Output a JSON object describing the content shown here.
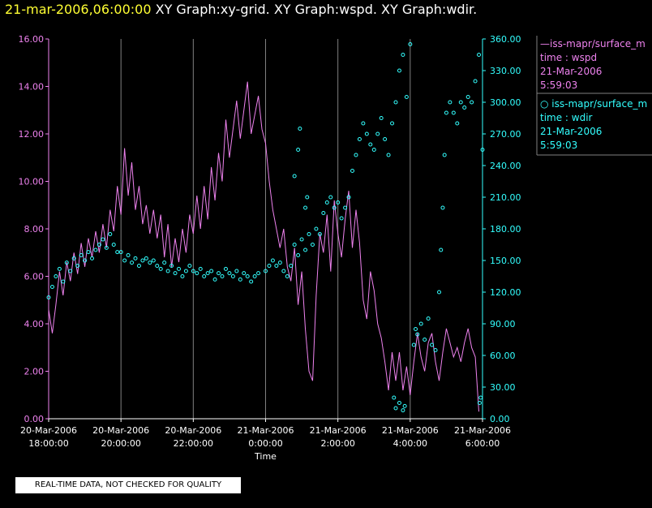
{
  "header": {
    "date": "21-mar-2006,06:00:00",
    "titles": "XY Graph:xy-grid.  XY Graph:wspd.  XY Graph:wdir."
  },
  "colors": {
    "wspd": "#ee82ee",
    "wdir": "#33ffff",
    "grid": "#808080",
    "axis_text": "#ffffff",
    "header_date": "#ffff33"
  },
  "legend": {
    "wspd": {
      "series": "iss-mapr/surface_m",
      "variable": "time : wspd",
      "date": "21-Mar-2006",
      "time": "5:59:03"
    },
    "wdir": {
      "series": "iss-mapr/surface_m",
      "variable": "time : wdir",
      "date": "21-Mar-2006",
      "time": "5:59:03"
    }
  },
  "disclaimer": "REAL-TIME DATA, NOT CHECKED FOR QUALITY",
  "chart_data": {
    "type": "line",
    "xlabel": "Time",
    "x_ticks": [
      {
        "hour": 18,
        "date": "20-Mar-2006",
        "time": "18:00:00"
      },
      {
        "hour": 20,
        "date": "20-Mar-2006",
        "time": "20:00:00"
      },
      {
        "hour": 22,
        "date": "20-Mar-2006",
        "time": "22:00:00"
      },
      {
        "hour": 24,
        "date": "21-Mar-2006",
        "time": "0:00:00"
      },
      {
        "hour": 26,
        "date": "21-Mar-2006",
        "time": "2:00:00"
      },
      {
        "hour": 28,
        "date": "21-Mar-2006",
        "time": "4:00:00"
      },
      {
        "hour": 30,
        "date": "21-Mar-2006",
        "time": "6:00:00"
      }
    ],
    "x_unit_note": "hours since 20-Mar-2006 00:00",
    "xlim": [
      18,
      30
    ],
    "y_left": {
      "ylim": [
        0,
        16
      ],
      "ticks": [
        "0.00",
        "2.00",
        "4.00",
        "6.00",
        "8.00",
        "10.00",
        "12.00",
        "14.00",
        "16.00"
      ]
    },
    "y_right": {
      "ylim": [
        0,
        360
      ],
      "ticks": [
        "0.00",
        "30.00",
        "60.00",
        "90.00",
        "120.00",
        "150.00",
        "180.00",
        "210.00",
        "240.00",
        "270.00",
        "300.00",
        "330.00",
        "360.00"
      ]
    },
    "grid": "vertical",
    "series": [
      {
        "name": "iss-mapr/surface_m  time : wspd",
        "style": "line",
        "axis": "left",
        "points": [
          [
            18.0,
            4.6
          ],
          [
            18.1,
            3.6
          ],
          [
            18.2,
            4.8
          ],
          [
            18.3,
            6.2
          ],
          [
            18.4,
            5.2
          ],
          [
            18.5,
            6.6
          ],
          [
            18.6,
            5.8
          ],
          [
            18.7,
            7.0
          ],
          [
            18.8,
            6.1
          ],
          [
            18.9,
            7.4
          ],
          [
            19.0,
            6.4
          ],
          [
            19.1,
            7.6
          ],
          [
            19.2,
            6.8
          ],
          [
            19.3,
            7.9
          ],
          [
            19.4,
            7.0
          ],
          [
            19.5,
            8.2
          ],
          [
            19.6,
            7.2
          ],
          [
            19.7,
            8.8
          ],
          [
            19.8,
            7.9
          ],
          [
            19.9,
            9.8
          ],
          [
            20.0,
            8.6
          ],
          [
            20.1,
            11.4
          ],
          [
            20.2,
            9.4
          ],
          [
            20.3,
            10.8
          ],
          [
            20.4,
            8.8
          ],
          [
            20.5,
            9.8
          ],
          [
            20.6,
            8.2
          ],
          [
            20.7,
            9.0
          ],
          [
            20.8,
            7.8
          ],
          [
            20.9,
            8.8
          ],
          [
            21.0,
            7.6
          ],
          [
            21.1,
            8.6
          ],
          [
            21.2,
            6.8
          ],
          [
            21.3,
            8.2
          ],
          [
            21.4,
            6.4
          ],
          [
            21.5,
            7.6
          ],
          [
            21.6,
            6.6
          ],
          [
            21.7,
            8.0
          ],
          [
            21.8,
            7.0
          ],
          [
            21.9,
            8.6
          ],
          [
            22.0,
            7.8
          ],
          [
            22.1,
            9.4
          ],
          [
            22.2,
            8.0
          ],
          [
            22.3,
            9.8
          ],
          [
            22.4,
            8.4
          ],
          [
            22.5,
            10.6
          ],
          [
            22.6,
            9.2
          ],
          [
            22.7,
            11.2
          ],
          [
            22.8,
            10.0
          ],
          [
            22.9,
            12.6
          ],
          [
            23.0,
            11.0
          ],
          [
            23.2,
            13.4
          ],
          [
            23.3,
            11.8
          ],
          [
            23.5,
            14.2
          ],
          [
            23.6,
            12.0
          ],
          [
            23.8,
            13.6
          ],
          [
            23.9,
            12.2
          ],
          [
            24.0,
            11.6
          ],
          [
            24.1,
            10.0
          ],
          [
            24.2,
            8.8
          ],
          [
            24.4,
            7.2
          ],
          [
            24.5,
            8.0
          ],
          [
            24.6,
            6.4
          ],
          [
            24.7,
            5.8
          ],
          [
            24.8,
            7.2
          ],
          [
            24.9,
            4.8
          ],
          [
            25.0,
            6.2
          ],
          [
            25.1,
            3.8
          ],
          [
            25.2,
            2.0
          ],
          [
            25.3,
            1.6
          ],
          [
            25.4,
            5.2
          ],
          [
            25.5,
            7.8
          ],
          [
            25.6,
            7.0
          ],
          [
            25.7,
            8.6
          ],
          [
            25.8,
            6.2
          ],
          [
            25.9,
            9.2
          ],
          [
            26.0,
            7.8
          ],
          [
            26.1,
            6.8
          ],
          [
            26.2,
            8.4
          ],
          [
            26.3,
            9.6
          ],
          [
            26.4,
            7.2
          ],
          [
            26.5,
            8.8
          ],
          [
            26.6,
            7.4
          ],
          [
            26.7,
            5.0
          ],
          [
            26.8,
            4.2
          ],
          [
            26.9,
            6.2
          ],
          [
            27.0,
            5.4
          ],
          [
            27.1,
            4.0
          ],
          [
            27.2,
            3.4
          ],
          [
            27.3,
            2.4
          ],
          [
            27.4,
            1.2
          ],
          [
            27.5,
            2.8
          ],
          [
            27.6,
            1.6
          ],
          [
            27.7,
            2.8
          ],
          [
            27.8,
            1.2
          ],
          [
            27.9,
            2.2
          ],
          [
            28.0,
            1.0
          ],
          [
            28.1,
            2.4
          ],
          [
            28.2,
            3.6
          ],
          [
            28.3,
            2.6
          ],
          [
            28.4,
            2.0
          ],
          [
            28.5,
            3.2
          ],
          [
            28.6,
            3.6
          ],
          [
            28.7,
            2.4
          ],
          [
            28.8,
            1.6
          ],
          [
            28.9,
            2.8
          ],
          [
            29.0,
            3.8
          ],
          [
            29.1,
            3.2
          ],
          [
            29.2,
            2.6
          ],
          [
            29.3,
            3.0
          ],
          [
            29.4,
            2.4
          ],
          [
            29.5,
            3.2
          ],
          [
            29.6,
            3.8
          ],
          [
            29.7,
            3.0
          ],
          [
            29.8,
            2.6
          ],
          [
            29.9,
            0.3
          ]
        ]
      },
      {
        "name": "iss-mapr/surface_m  time : wdir",
        "style": "scatter",
        "axis": "right",
        "points": [
          [
            18.0,
            115
          ],
          [
            18.1,
            125
          ],
          [
            18.2,
            135
          ],
          [
            18.3,
            142
          ],
          [
            18.4,
            130
          ],
          [
            18.5,
            148
          ],
          [
            18.6,
            140
          ],
          [
            18.7,
            152
          ],
          [
            18.8,
            145
          ],
          [
            18.9,
            155
          ],
          [
            19.0,
            150
          ],
          [
            19.1,
            158
          ],
          [
            19.2,
            152
          ],
          [
            19.3,
            160
          ],
          [
            19.4,
            165
          ],
          [
            19.5,
            170
          ],
          [
            19.6,
            162
          ],
          [
            19.7,
            175
          ],
          [
            19.8,
            165
          ],
          [
            19.9,
            158
          ],
          [
            20.0,
            158
          ],
          [
            20.1,
            150
          ],
          [
            20.2,
            155
          ],
          [
            20.3,
            148
          ],
          [
            20.4,
            152
          ],
          [
            20.5,
            145
          ],
          [
            20.6,
            150
          ],
          [
            20.7,
            152
          ],
          [
            20.8,
            148
          ],
          [
            20.9,
            150
          ],
          [
            21.0,
            145
          ],
          [
            21.1,
            142
          ],
          [
            21.2,
            148
          ],
          [
            21.3,
            140
          ],
          [
            21.4,
            145
          ],
          [
            21.5,
            138
          ],
          [
            21.6,
            142
          ],
          [
            21.7,
            135
          ],
          [
            21.8,
            140
          ],
          [
            21.9,
            145
          ],
          [
            22.0,
            140
          ],
          [
            22.1,
            138
          ],
          [
            22.2,
            142
          ],
          [
            22.3,
            135
          ],
          [
            22.4,
            138
          ],
          [
            22.5,
            140
          ],
          [
            22.6,
            132
          ],
          [
            22.7,
            138
          ],
          [
            22.8,
            135
          ],
          [
            22.9,
            142
          ],
          [
            23.0,
            138
          ],
          [
            23.1,
            135
          ],
          [
            23.2,
            140
          ],
          [
            23.3,
            132
          ],
          [
            23.4,
            138
          ],
          [
            23.5,
            135
          ],
          [
            23.6,
            130
          ],
          [
            23.7,
            135
          ],
          [
            23.8,
            138
          ],
          [
            24.0,
            140
          ],
          [
            24.1,
            145
          ],
          [
            24.2,
            150
          ],
          [
            24.3,
            145
          ],
          [
            24.4,
            148
          ],
          [
            24.5,
            140
          ],
          [
            24.6,
            135
          ],
          [
            24.7,
            145
          ],
          [
            24.8,
            165
          ],
          [
            24.9,
            155
          ],
          [
            25.0,
            170
          ],
          [
            25.1,
            160
          ],
          [
            25.2,
            175
          ],
          [
            25.3,
            165
          ],
          [
            25.4,
            180
          ],
          [
            25.5,
            175
          ],
          [
            25.6,
            195
          ],
          [
            25.7,
            205
          ],
          [
            25.8,
            210
          ],
          [
            25.9,
            200
          ],
          [
            26.0,
            205
          ],
          [
            26.1,
            190
          ],
          [
            26.2,
            200
          ],
          [
            26.3,
            210
          ],
          [
            26.4,
            235
          ],
          [
            26.5,
            250
          ],
          [
            26.6,
            265
          ],
          [
            26.7,
            280
          ],
          [
            26.8,
            270
          ],
          [
            26.9,
            260
          ],
          [
            27.0,
            255
          ],
          [
            27.1,
            270
          ],
          [
            27.2,
            285
          ],
          [
            27.3,
            265
          ],
          [
            27.4,
            250
          ],
          [
            27.5,
            280
          ],
          [
            27.6,
            300
          ],
          [
            27.7,
            330
          ],
          [
            27.8,
            345
          ],
          [
            27.9,
            305
          ],
          [
            28.0,
            355
          ],
          [
            28.1,
            70
          ],
          [
            28.15,
            85
          ],
          [
            28.2,
            80
          ],
          [
            28.3,
            90
          ],
          [
            28.4,
            75
          ],
          [
            28.5,
            95
          ],
          [
            28.6,
            70
          ],
          [
            28.7,
            65
          ],
          [
            28.8,
            120
          ],
          [
            28.85,
            160
          ],
          [
            28.9,
            200
          ],
          [
            28.95,
            250
          ],
          [
            29.0,
            290
          ],
          [
            29.1,
            300
          ],
          [
            29.2,
            290
          ],
          [
            29.3,
            280
          ],
          [
            29.4,
            300
          ],
          [
            29.5,
            295
          ],
          [
            29.6,
            305
          ],
          [
            29.7,
            300
          ],
          [
            29.8,
            320
          ],
          [
            29.9,
            345
          ],
          [
            30.0,
            255
          ],
          [
            29.95,
            20
          ],
          [
            29.92,
            15
          ],
          [
            27.55,
            20
          ],
          [
            27.6,
            10
          ],
          [
            27.7,
            15
          ],
          [
            27.8,
            8
          ],
          [
            27.85,
            12
          ],
          [
            24.8,
            230
          ],
          [
            24.9,
            255
          ],
          [
            24.95,
            275
          ],
          [
            25.1,
            200
          ],
          [
            25.15,
            210
          ]
        ]
      }
    ]
  }
}
